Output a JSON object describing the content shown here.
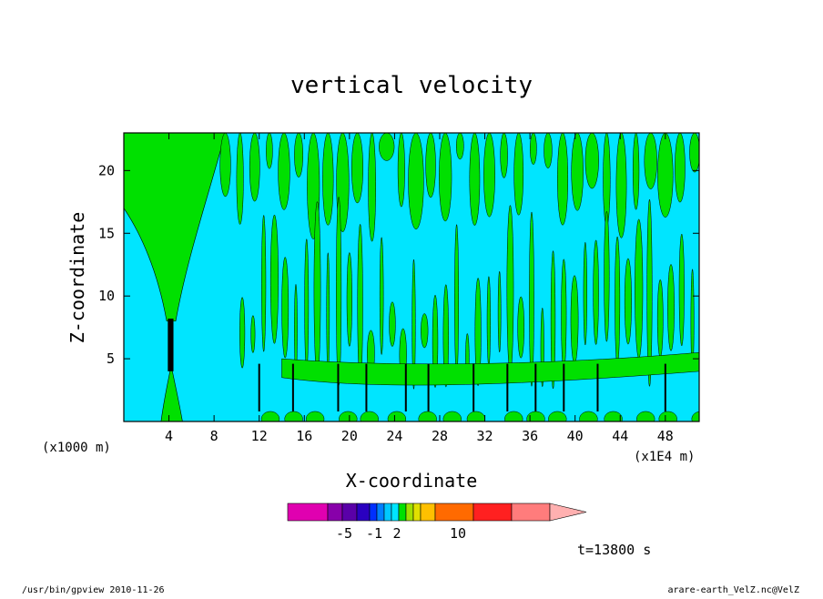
{
  "chart_data": {
    "type": "heatmap",
    "title": "vertical velocity",
    "xlabel": "X-coordinate",
    "ylabel": "Z-coordinate",
    "x_unit_left": "(x1000 m)",
    "x_unit_right": "(x1E4 m)",
    "xlim": [
      0,
      51
    ],
    "ylim": [
      0,
      23
    ],
    "x_ticks": [
      4,
      8,
      12,
      16,
      20,
      24,
      28,
      32,
      36,
      40,
      44,
      48
    ],
    "y_ticks": [
      5,
      10,
      15,
      20
    ],
    "background_field_color": "#00e5ff",
    "positive_field_color": "#00e000",
    "contour_line_color": "#000000",
    "colorbar": {
      "colors": [
        "#e000b0",
        "#8800aa",
        "#5a00a8",
        "#2a00c0",
        "#0030ff",
        "#0080ff",
        "#00c8ff",
        "#00e5ff",
        "#00e000",
        "#a0e000",
        "#e0e000",
        "#ffc000",
        "#ff6a00",
        "#ff2020",
        "#ff7c7c",
        "#ffb0b0"
      ],
      "labels": [
        "-5",
        "-1",
        "2",
        "10"
      ]
    },
    "time_label": "t=13800 s"
  },
  "footer": {
    "left": "/usr/bin/gpview  2010-11-26",
    "right": "arare-earth_VelZ.nc@VelZ"
  }
}
